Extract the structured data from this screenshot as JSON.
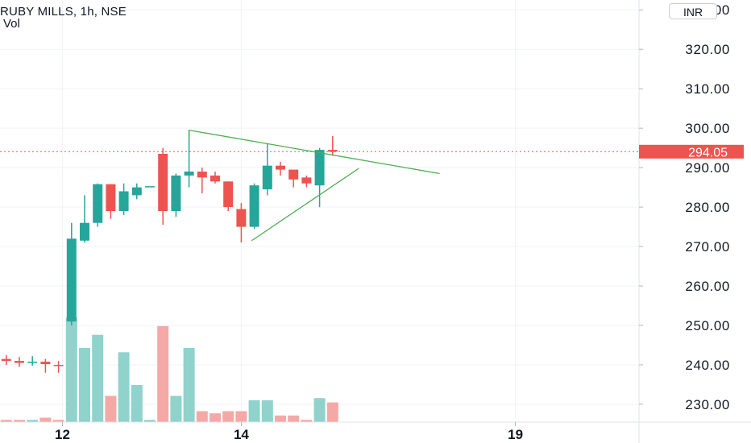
{
  "header": {
    "symbol_title": "RUBY MILLS, 1h, NSE",
    "volume_label": "Vol",
    "currency_button": "INR"
  },
  "chart_data": {
    "type": "candlestick",
    "x_labels": [
      "12",
      "14",
      "19"
    ],
    "y_axis_ticks": [
      "330.00",
      "320.00",
      "310.00",
      "300.00",
      "290.00",
      "280.00",
      "270.00",
      "260.00",
      "250.00",
      "240.00",
      "230.00"
    ],
    "ylim": [
      225.5,
      332.5
    ],
    "last_price": "294.05",
    "colors": {
      "up": "#26a69a",
      "down": "#ef5350",
      "up_volume": "#8fd3cc",
      "down_volume": "#f5a9a7",
      "trendline": "#4caf50",
      "grid": "#f0f3fa",
      "price_line": "#ef5350"
    },
    "candles": [
      {
        "o": 241.5,
        "h": 242.5,
        "l": 240.0,
        "c": 241.0
      },
      {
        "o": 241.0,
        "h": 242.0,
        "l": 239.5,
        "c": 240.5
      },
      {
        "o": 240.8,
        "h": 242.2,
        "l": 239.8,
        "c": 240.8
      },
      {
        "o": 240.8,
        "h": 241.5,
        "l": 238.0,
        "c": 240.2
      },
      {
        "o": 240.0,
        "h": 241.0,
        "l": 238.0,
        "c": 239.8
      },
      {
        "o": 251.0,
        "h": 276.0,
        "l": 250.0,
        "c": 272.0
      },
      {
        "o": 271.5,
        "h": 283.0,
        "l": 271.0,
        "c": 276.0
      },
      {
        "o": 276.0,
        "h": 286.0,
        "l": 275.0,
        "c": 285.8
      },
      {
        "o": 285.8,
        "h": 285.8,
        "l": 277.0,
        "c": 279.0
      },
      {
        "o": 279.0,
        "h": 286.0,
        "l": 278.0,
        "c": 284.0
      },
      {
        "o": 283.0,
        "h": 286.0,
        "l": 282.0,
        "c": 285.0
      },
      {
        "o": 285.0,
        "h": 285.0,
        "l": 285.0,
        "c": 285.3
      },
      {
        "o": 293.5,
        "h": 295.0,
        "l": 275.5,
        "c": 279.0
      },
      {
        "o": 279.0,
        "h": 288.5,
        "l": 277.5,
        "c": 288.0
      },
      {
        "o": 288.0,
        "h": 299.5,
        "l": 285.0,
        "c": 289.0
      },
      {
        "o": 289.0,
        "h": 290.0,
        "l": 283.5,
        "c": 287.5
      },
      {
        "o": 288.0,
        "h": 289.0,
        "l": 286.0,
        "c": 286.5
      },
      {
        "o": 286.5,
        "h": 286.5,
        "l": 279.0,
        "c": 280.0
      },
      {
        "o": 279.5,
        "h": 281.0,
        "l": 271.0,
        "c": 275.0
      },
      {
        "o": 275.0,
        "h": 286.0,
        "l": 274.5,
        "c": 285.5
      },
      {
        "o": 284.5,
        "h": 296.0,
        "l": 283.0,
        "c": 290.5
      },
      {
        "o": 290.5,
        "h": 291.5,
        "l": 288.0,
        "c": 289.5
      },
      {
        "o": 289.5,
        "h": 289.5,
        "l": 285.0,
        "c": 287.0
      },
      {
        "o": 287.5,
        "h": 288.0,
        "l": 285.0,
        "c": 286.0
      },
      {
        "o": 285.5,
        "h": 295.0,
        "l": 280.0,
        "c": 294.5
      },
      {
        "o": 294.5,
        "h": 298.0,
        "l": 293.0,
        "c": 294.05
      }
    ],
    "volumes": [
      1,
      1,
      1,
      2,
      1,
      48,
      34,
      40,
      12,
      32,
      17,
      1,
      44,
      12,
      34,
      5,
      4,
      5,
      5,
      10,
      10,
      3,
      3,
      1,
      11,
      9
    ],
    "trendlines": [
      {
        "points": [
          [
            14,
            299.5
          ],
          [
            33.2,
            288.5
          ]
        ]
      },
      {
        "points": [
          [
            18.8,
            271.5
          ],
          [
            27.0,
            289.8
          ]
        ]
      }
    ]
  }
}
